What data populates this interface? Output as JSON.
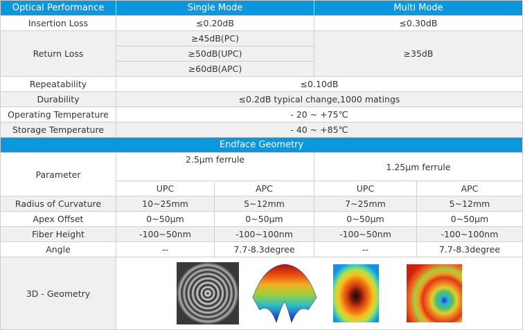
{
  "header": {
    "col1": "Optical Performance",
    "col2": "Single Mode",
    "col3": "Multi Mode"
  },
  "rows": {
    "insertion_loss": {
      "label": "Insertion Loss",
      "sm": "≤0.20dB",
      "mm": "≤0.30dB"
    },
    "return_loss": {
      "label": "Return Loss",
      "sm": [
        "≥45dB(PC)",
        "≥50dB(UPC)",
        "≥60dB(APC)"
      ],
      "mm": "≥35dB"
    },
    "repeatability": {
      "label": "Repeatability",
      "value": "≤0.10dB"
    },
    "durability": {
      "label": "Durability",
      "value": "≤0.2dB typical change,1000 matings"
    },
    "operating_temp": {
      "label": "Operating Temperature",
      "value": "- 20 ~ +75℃"
    },
    "storage_temp": {
      "label": "Storage Temperature",
      "value": "- 40 ~ +85℃"
    }
  },
  "endface": {
    "title": "Endface Geometry",
    "parameter_label": "Parameter",
    "ferrule_25": "2.5μm ferrule",
    "ferrule_125": "1.25μm ferrule",
    "sub": [
      "UPC",
      "APC",
      "UPC",
      "APC"
    ],
    "radius": {
      "label": "Radius of Curvature",
      "values": [
        "10~25mm",
        "5~12mm",
        "7~25mm",
        "5~12mm"
      ]
    },
    "apex": {
      "label": "Apex Offset",
      "values": [
        "0~50μm",
        "0~50μm",
        "0~50μm",
        "0~50μm"
      ]
    },
    "fiber": {
      "label": "Fiber Height",
      "values": [
        "-100~50nm",
        "-100~100nm",
        "-100~50nm",
        "-100~100nm"
      ]
    },
    "angle": {
      "label": "Angle",
      "values": [
        "--",
        "7.7-8.3degree",
        "--",
        "7.7-8.3degree"
      ]
    },
    "geometry": {
      "label": "3D - Geometry",
      "images": [
        "interferogram-rings",
        "3d-dome-surface",
        "heatmap-concentric",
        "heatmap-angled"
      ]
    }
  },
  "colors": {
    "header_blue": "#0b97dd",
    "gray_row": "#f0f0f0"
  }
}
